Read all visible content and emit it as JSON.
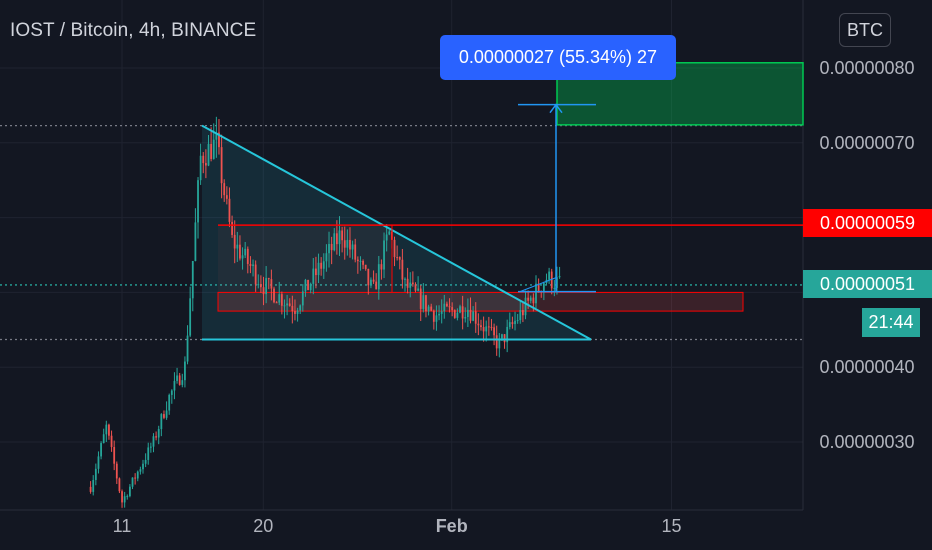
{
  "header": {
    "title": "IOST / Bitcoin, 4h, BINANCE",
    "currency_button": "BTC"
  },
  "measure": {
    "label": "0.00000027 (55.34%) 27"
  },
  "price_tags": {
    "resistance": "0.00000059",
    "last": "0.00000051",
    "countdown": "21:44"
  },
  "colors": {
    "background": "#131722",
    "up": "#26a69a",
    "down": "#ef5350",
    "triangle": "#26c6da",
    "resistance": "#ff0000",
    "target_zone": "#00c853",
    "measure": "#2962ff"
  },
  "chart_data": {
    "type": "candlestick",
    "title": "IOST / Bitcoin, 4h, BINANCE",
    "y_axis": {
      "ticks": [
        "0.00000080",
        "0.00000070",
        "0.00000040",
        "0.00000030"
      ],
      "ylim": [
        2.15e-07,
        8.43e-07
      ]
    },
    "x_axis": {
      "ticks": [
        "11",
        "20",
        "Feb",
        "15"
      ]
    },
    "approx_price_path": [
      {
        "date": "Jan 9",
        "price": 2.4e-07
      },
      {
        "date": "Jan 10",
        "price": 3.2e-07
      },
      {
        "date": "Jan 11",
        "price": 2.2e-07
      },
      {
        "date": "Jan 13",
        "price": 3e-07
      },
      {
        "date": "Jan 14",
        "price": 3.6e-07
      },
      {
        "date": "Jan 15",
        "price": 4e-07
      },
      {
        "date": "Jan 16",
        "price": 6.8e-07
      },
      {
        "date": "Jan 17",
        "price": 7e-07
      },
      {
        "date": "Jan 18",
        "price": 5.7e-07
      },
      {
        "date": "Jan 20",
        "price": 5.1e-07
      },
      {
        "date": "Jan 22",
        "price": 4.8e-07
      },
      {
        "date": "Jan 25",
        "price": 5.8e-07
      },
      {
        "date": "Jan 27",
        "price": 5e-07
      },
      {
        "date": "Jan 28",
        "price": 5.8e-07
      },
      {
        "date": "Jan 29",
        "price": 5.1e-07
      },
      {
        "date": "Jan 31",
        "price": 4.7e-07
      },
      {
        "date": "Feb 2",
        "price": 4.8e-07
      },
      {
        "date": "Feb 4",
        "price": 4.3e-07
      },
      {
        "date": "Feb 6",
        "price": 4.9e-07
      },
      {
        "date": "Feb 7",
        "price": 5.2e-07
      },
      {
        "date": "Feb 8",
        "price": 5.1e-07
      }
    ],
    "annotations": [
      {
        "type": "descending-triangle",
        "top": 7.23e-07,
        "support": 4.37e-07
      },
      {
        "type": "horizontal-level",
        "price": 5.9e-07,
        "label": "0.00000059"
      },
      {
        "type": "range-box",
        "from": 4.75e-07,
        "to": 5e-07
      },
      {
        "type": "target-zone",
        "from": 7.24e-07,
        "to": 8.07e-07
      },
      {
        "type": "measure",
        "label": "0.00000027 (55.34%) 27"
      }
    ],
    "last_price": 5.1e-07,
    "grid": true
  }
}
